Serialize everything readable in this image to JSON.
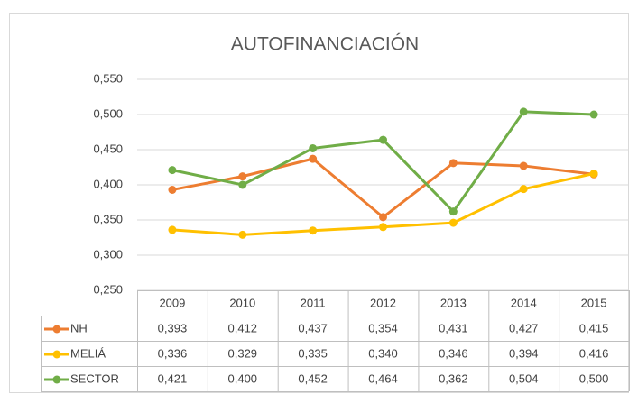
{
  "chart_data": {
    "type": "line",
    "title": "AUTOFINANCIACIÓN",
    "categories": [
      "2009",
      "2010",
      "2011",
      "2012",
      "2013",
      "2014",
      "2015"
    ],
    "series": [
      {
        "name": "NH",
        "color": "#ED7D31",
        "values": [
          0.393,
          0.412,
          0.437,
          0.354,
          0.431,
          0.427,
          0.415
        ],
        "value_labels": [
          "0,393",
          "0,412",
          "0,437",
          "0,354",
          "0,431",
          "0,427",
          "0,415"
        ]
      },
      {
        "name": "MELIÁ",
        "color": "#FFC000",
        "values": [
          0.336,
          0.329,
          0.335,
          0.34,
          0.346,
          0.394,
          0.416
        ],
        "value_labels": [
          "0,336",
          "0,329",
          "0,335",
          "0,340",
          "0,346",
          "0,394",
          "0,416"
        ]
      },
      {
        "name": "SECTOR",
        "color": "#70AD47",
        "values": [
          0.421,
          0.4,
          0.452,
          0.464,
          0.362,
          0.504,
          0.5
        ],
        "value_labels": [
          "0,421",
          "0,400",
          "0,452",
          "0,464",
          "0,362",
          "0,504",
          "0,500"
        ]
      }
    ],
    "ylim": [
      0.25,
      0.55
    ],
    "yticks": [
      {
        "value": 0.25,
        "label": "0,250"
      },
      {
        "value": 0.3,
        "label": "0,300"
      },
      {
        "value": 0.35,
        "label": "0,350"
      },
      {
        "value": 0.4,
        "label": "0,400"
      },
      {
        "value": 0.45,
        "label": "0,450"
      },
      {
        "value": 0.5,
        "label": "0,500"
      },
      {
        "value": 0.55,
        "label": "0,550"
      }
    ],
    "grid": true
  }
}
